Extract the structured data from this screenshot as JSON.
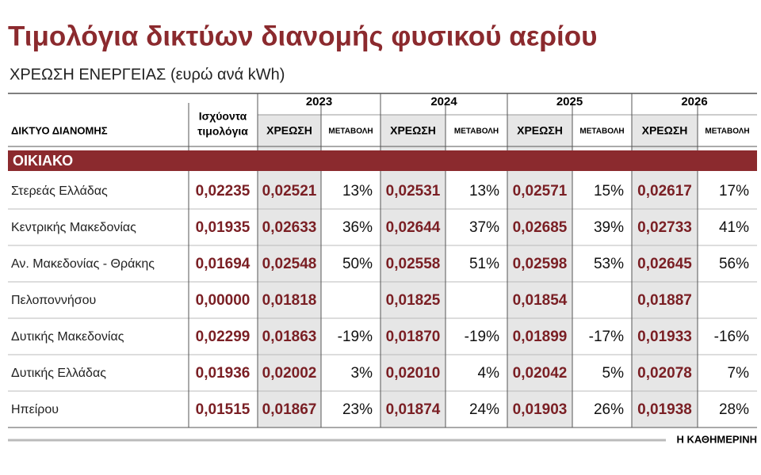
{
  "title": "Τιμολόγια δικτύων διανομής φυσικού αερίου",
  "subtitle": "ΧΡΕΩΣΗ ΕΝΕΡΓΕΙΑΣ (ευρώ ανά kWh)",
  "header": {
    "network": "ΔΙΚΤΥΟ ΔΙΑΝΟΜΗΣ",
    "current": [
      "Ισχύοντα",
      "τιμολόγια"
    ],
    "years": [
      "2023",
      "2024",
      "2025",
      "2026"
    ],
    "charge": "ΧΡΕΩΣΗ",
    "change": "ΜΕΤΑΒΟΛΗ"
  },
  "section": "ΟΙΚΙΑΚΟ",
  "rows": [
    {
      "name": "Στερεάς Ελλάδας",
      "current": "0,02235",
      "years": [
        {
          "charge": "0,02521",
          "change": "13%"
        },
        {
          "charge": "0,02531",
          "change": "13%"
        },
        {
          "charge": "0,02571",
          "change": "15%"
        },
        {
          "charge": "0,02617",
          "change": "17%"
        }
      ]
    },
    {
      "name": "Κεντρικής Μακεδονίας",
      "current": "0,01935",
      "years": [
        {
          "charge": "0,02633",
          "change": "36%"
        },
        {
          "charge": "0,02644",
          "change": "37%"
        },
        {
          "charge": "0,02685",
          "change": "39%"
        },
        {
          "charge": "0,02733",
          "change": "41%"
        }
      ]
    },
    {
      "name": "Αν. Μακεδονίας - Θράκης",
      "current": "0,01694",
      "years": [
        {
          "charge": "0,02548",
          "change": "50%"
        },
        {
          "charge": "0,02558",
          "change": "51%"
        },
        {
          "charge": "0,02598",
          "change": "53%"
        },
        {
          "charge": "0,02645",
          "change": "56%"
        }
      ]
    },
    {
      "name": "Πελοποννήσου",
      "current": "0,00000",
      "years": [
        {
          "charge": "0,01818",
          "change": null
        },
        {
          "charge": "0,01825",
          "change": null
        },
        {
          "charge": "0,01854",
          "change": null
        },
        {
          "charge": "0,01887",
          "change": null
        }
      ]
    },
    {
      "name": "Δυτικής Μακεδονίας",
      "current": "0,02299",
      "years": [
        {
          "charge": "0,01863",
          "change": "-19%"
        },
        {
          "charge": "0,01870",
          "change": "-19%"
        },
        {
          "charge": "0,01899",
          "change": "-17%"
        },
        {
          "charge": "0,01933",
          "change": "-16%"
        }
      ]
    },
    {
      "name": "Δυτικής Ελλάδας",
      "current": "0,01936",
      "years": [
        {
          "charge": "0,02002",
          "change": "3%"
        },
        {
          "charge": "0,02010",
          "change": "4%"
        },
        {
          "charge": "0,02042",
          "change": "5%"
        },
        {
          "charge": "0,02078",
          "change": "7%"
        }
      ]
    },
    {
      "name": "Ηπείρου",
      "current": "0,01515",
      "years": [
        {
          "charge": "0,01867",
          "change": "23%"
        },
        {
          "charge": "0,01874",
          "change": "24%"
        },
        {
          "charge": "0,01903",
          "change": "26%"
        },
        {
          "charge": "0,01938",
          "change": "28%"
        }
      ]
    }
  ],
  "footer": "Η ΚΑΘΗΜΕΡΙΝΗ"
}
